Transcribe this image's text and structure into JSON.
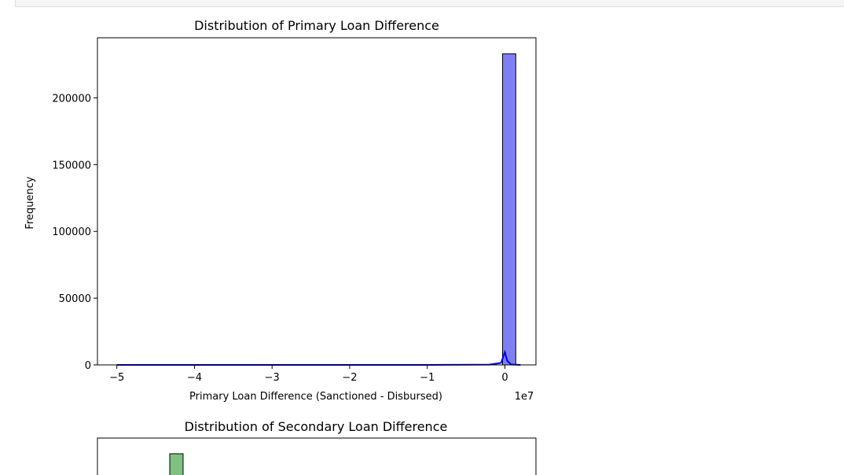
{
  "chart_data": [
    {
      "type": "bar",
      "title": "Distribution of Primary Loan Difference",
      "xlabel": "Primary Loan Difference (Sanctioned - Disbursed)",
      "ylabel": "Frequency",
      "x_offset_label": "1e7",
      "xlim": [
        -5.25,
        0.4
      ],
      "ylim": [
        0,
        245000
      ],
      "xticks": [
        -5,
        -4,
        -3,
        -2,
        -1,
        0
      ],
      "xtick_labels": [
        "−5",
        "−4",
        "−3",
        "−2",
        "−1",
        "0"
      ],
      "yticks": [
        0,
        50000,
        100000,
        150000,
        200000
      ],
      "ytick_labels": [
        "0",
        "50000",
        "100000",
        "150000",
        "200000"
      ],
      "bins": [
        {
          "x0": -0.03,
          "x1": 0.14,
          "value": 233000
        }
      ],
      "kde": [
        [
          -5.0,
          0
        ],
        [
          -1.0,
          0
        ],
        [
          -0.2,
          200
        ],
        [
          -0.05,
          1500
        ],
        [
          0.0,
          9500
        ],
        [
          0.03,
          3000
        ],
        [
          0.08,
          300
        ],
        [
          0.2,
          0
        ],
        [
          0.14,
          0
        ]
      ],
      "bar_color": "#7f7ff5",
      "kde_color": "#0000ff",
      "grid": false
    },
    {
      "type": "bar",
      "title": "Distribution of Secondary Loan Difference",
      "bar_color": "#80c080"
    }
  ]
}
